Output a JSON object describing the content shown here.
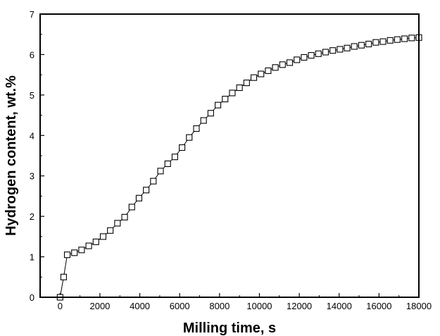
{
  "chart_data": {
    "type": "scatter",
    "xlabel": "Milling time, s",
    "ylabel": "Hydrogen content, wt.%",
    "xlim": [
      -1000,
      18000
    ],
    "ylim": [
      0,
      7
    ],
    "xticks": [
      0,
      2000,
      4000,
      6000,
      8000,
      10000,
      12000,
      14000,
      16000,
      18000
    ],
    "yticks": [
      0,
      1,
      2,
      3,
      4,
      5,
      6,
      7
    ],
    "marker": "open-square",
    "line_connected": true,
    "colors": {
      "marker": "#000000",
      "line": "#000000",
      "frame": "#000000"
    },
    "series": [
      {
        "x": [
          0,
          180,
          360,
          720,
          1080,
          1440,
          1800,
          2160,
          2520,
          2880,
          3240,
          3600,
          3960,
          4320,
          4680,
          5040,
          5400,
          5760,
          6120,
          6480,
          6840,
          7200,
          7560,
          7920,
          8280,
          8640,
          9000,
          9360,
          9720,
          10080,
          10440,
          10800,
          11160,
          11520,
          11880,
          12240,
          12600,
          12960,
          13320,
          13680,
          14040,
          14400,
          14760,
          15120,
          15480,
          15840,
          16200,
          16560,
          16920,
          17280,
          17640,
          18000
        ],
        "y": [
          0.0,
          0.5,
          1.05,
          1.1,
          1.17,
          1.27,
          1.37,
          1.5,
          1.65,
          1.83,
          1.98,
          2.23,
          2.45,
          2.65,
          2.87,
          3.12,
          3.3,
          3.47,
          3.7,
          3.95,
          4.17,
          4.37,
          4.55,
          4.75,
          4.9,
          5.05,
          5.18,
          5.3,
          5.43,
          5.52,
          5.6,
          5.68,
          5.75,
          5.8,
          5.87,
          5.93,
          5.98,
          6.02,
          6.06,
          6.1,
          6.13,
          6.16,
          6.2,
          6.23,
          6.26,
          6.3,
          6.32,
          6.35,
          6.37,
          6.39,
          6.41,
          6.42
        ]
      }
    ]
  }
}
